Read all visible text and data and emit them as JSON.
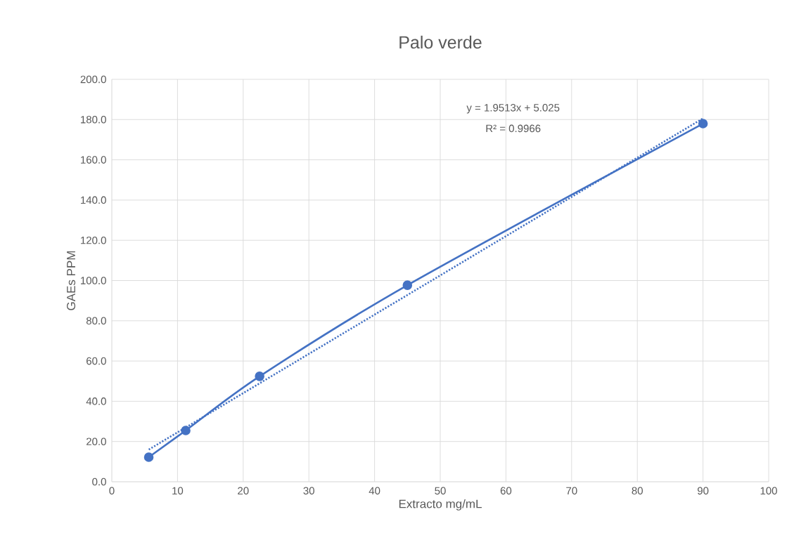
{
  "chart_data": {
    "type": "line",
    "title": "Palo verde",
    "xlabel": "Extracto mg/mL",
    "ylabel": "GAEs PPM",
    "series": [
      {
        "color": "#4472c4",
        "x": [
          5.625,
          11.25,
          22.5,
          45,
          90
        ],
        "values": [
          12.2,
          25.5,
          52.4,
          97.7,
          178.0
        ],
        "marker": "circle",
        "line_style": "solid"
      },
      {
        "type": "line",
        "color": "#4472c4",
        "x": [
          5.625,
          90
        ],
        "values": [
          16.0,
          180.6
        ],
        "marker": "none",
        "line_style": "dotted"
      }
    ],
    "annotations": [
      "y = 1.9513x + 5.025",
      "R² = 0.9966"
    ],
    "xlim": [
      0,
      100
    ],
    "xticks": [
      0,
      10,
      20,
      30,
      40,
      50,
      60,
      70,
      80,
      90,
      100
    ],
    "ylim": [
      0,
      200
    ],
    "yticks": [
      {
        "value": 0,
        "label": "0.0"
      },
      {
        "value": 20,
        "label": "20.0"
      },
      {
        "value": 40,
        "label": "40.0"
      },
      {
        "value": 60,
        "label": "60.0"
      },
      {
        "value": 80,
        "label": "80.0"
      },
      {
        "value": 100,
        "label": "100.0"
      },
      {
        "value": 120,
        "label": "120.0"
      },
      {
        "value": 140,
        "label": "140.0"
      },
      {
        "value": 160,
        "label": "160.0"
      },
      {
        "value": 180,
        "label": "180.0"
      },
      {
        "value": 200,
        "label": "200.0"
      }
    ],
    "grid": true,
    "legend": false
  }
}
